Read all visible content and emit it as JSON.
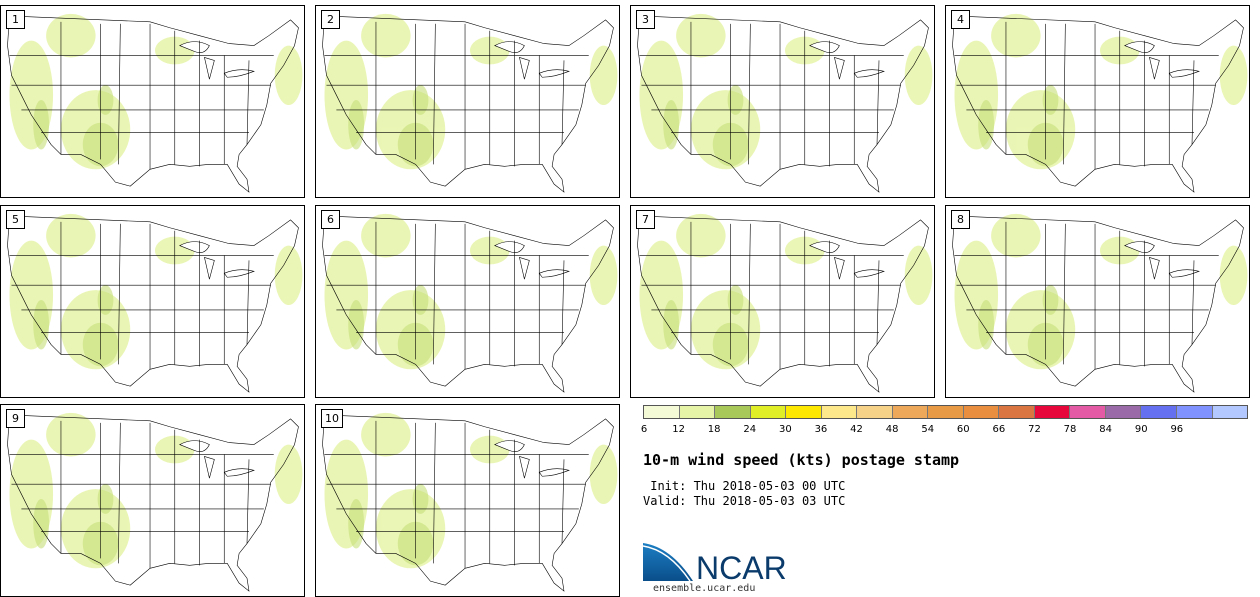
{
  "members": [
    "1",
    "2",
    "3",
    "4",
    "5",
    "6",
    "7",
    "8",
    "9",
    "10"
  ],
  "colorbar": {
    "colors": [
      "#f4f9d6",
      "#e6f4a8",
      "#a9c85a",
      "#e0ee27",
      "#fce800",
      "#fde98c",
      "#f6d188",
      "#eda85a",
      "#e89a45",
      "#e98e3e",
      "#da7440",
      "#e8073b",
      "#e45aa5",
      "#9a6aa8",
      "#6470f0",
      "#7f92ff",
      "#b3c8ff"
    ],
    "ticks": [
      "6",
      "12",
      "18",
      "24",
      "30",
      "36",
      "42",
      "48",
      "54",
      "60",
      "66",
      "72",
      "78",
      "84",
      "90",
      "96"
    ]
  },
  "title": "10-m wind speed (kts) postage stamp",
  "init": " Init: Thu 2018-05-03 00 UTC",
  "valid": "Valid: Thu 2018-05-03 03 UTC",
  "logo": {
    "text": "NCAR",
    "url": "ensemble.ucar.edu"
  }
}
